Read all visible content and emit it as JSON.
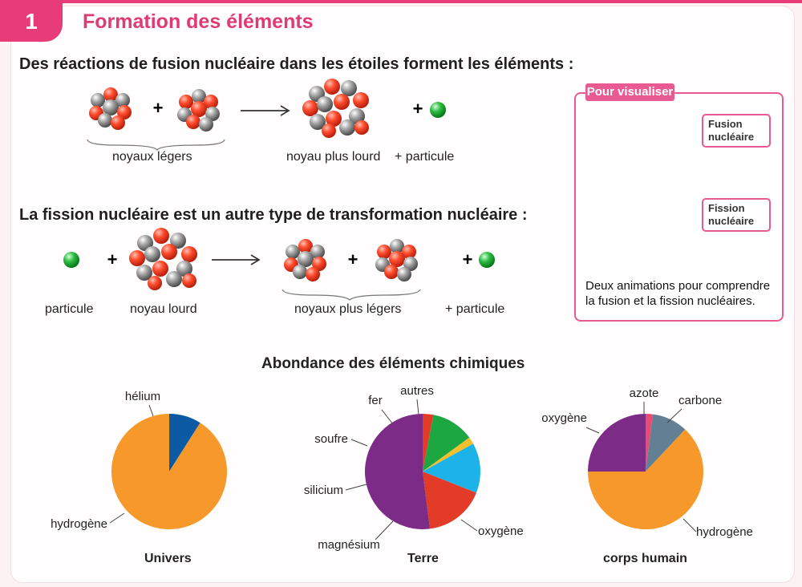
{
  "header": {
    "number": "1",
    "title": "Formation des éléments"
  },
  "fusion": {
    "heading": "Des réactions de fusion nucléaire dans les étoiles forment les éléments :",
    "light_label": "noyaux légers",
    "heavy_label": "noyau plus lourd",
    "particle_label": "+ particule",
    "plus": "+"
  },
  "fission": {
    "heading": "La fission nucléaire est un autre type de transformation nucléaire :",
    "particle_label": "particule",
    "heavy_label": "noyau lourd",
    "light_label": "noyaux plus légers",
    "particle_out_label": "+ particule",
    "plus": "+"
  },
  "sidebar": {
    "tag": "Pour visualiser",
    "fusion_label": "Fusion nucléaire",
    "fission_label": "Fission nucléaire",
    "caption": "Deux animations pour comprendre la fusion et la fission nucléaires."
  },
  "colors": {
    "pink": "#e73c78",
    "orange": "#f7992a",
    "blue": "#0b5aa3",
    "purple": "#7c2b86",
    "green": "#1da743",
    "red": "#e23c28",
    "cyan": "#1cb3e8",
    "yellow": "#f3bf2d",
    "magenta": "#e84c75",
    "teal": "#637f93",
    "nucleus_grey": "#a7a7a7",
    "nucleus_red": "#ff4c2d"
  },
  "chart_data": [
    {
      "type": "pie",
      "title": "Univers",
      "heading": "Abondance des éléments chimiques",
      "categories": [
        "hélium",
        "hydrogène"
      ],
      "values": [
        9,
        91
      ]
    },
    {
      "type": "pie",
      "title": "Terre",
      "categories": [
        "autres",
        "fer",
        "soufre",
        "silicium",
        "magnésium",
        "oxygène"
      ],
      "values": [
        3,
        12,
        2,
        14,
        17,
        52
      ]
    },
    {
      "type": "pie",
      "title": "corps humain",
      "categories": [
        "azote",
        "carbone",
        "hydrogène",
        "oxygène"
      ],
      "values": [
        2,
        10,
        63,
        25
      ]
    }
  ]
}
